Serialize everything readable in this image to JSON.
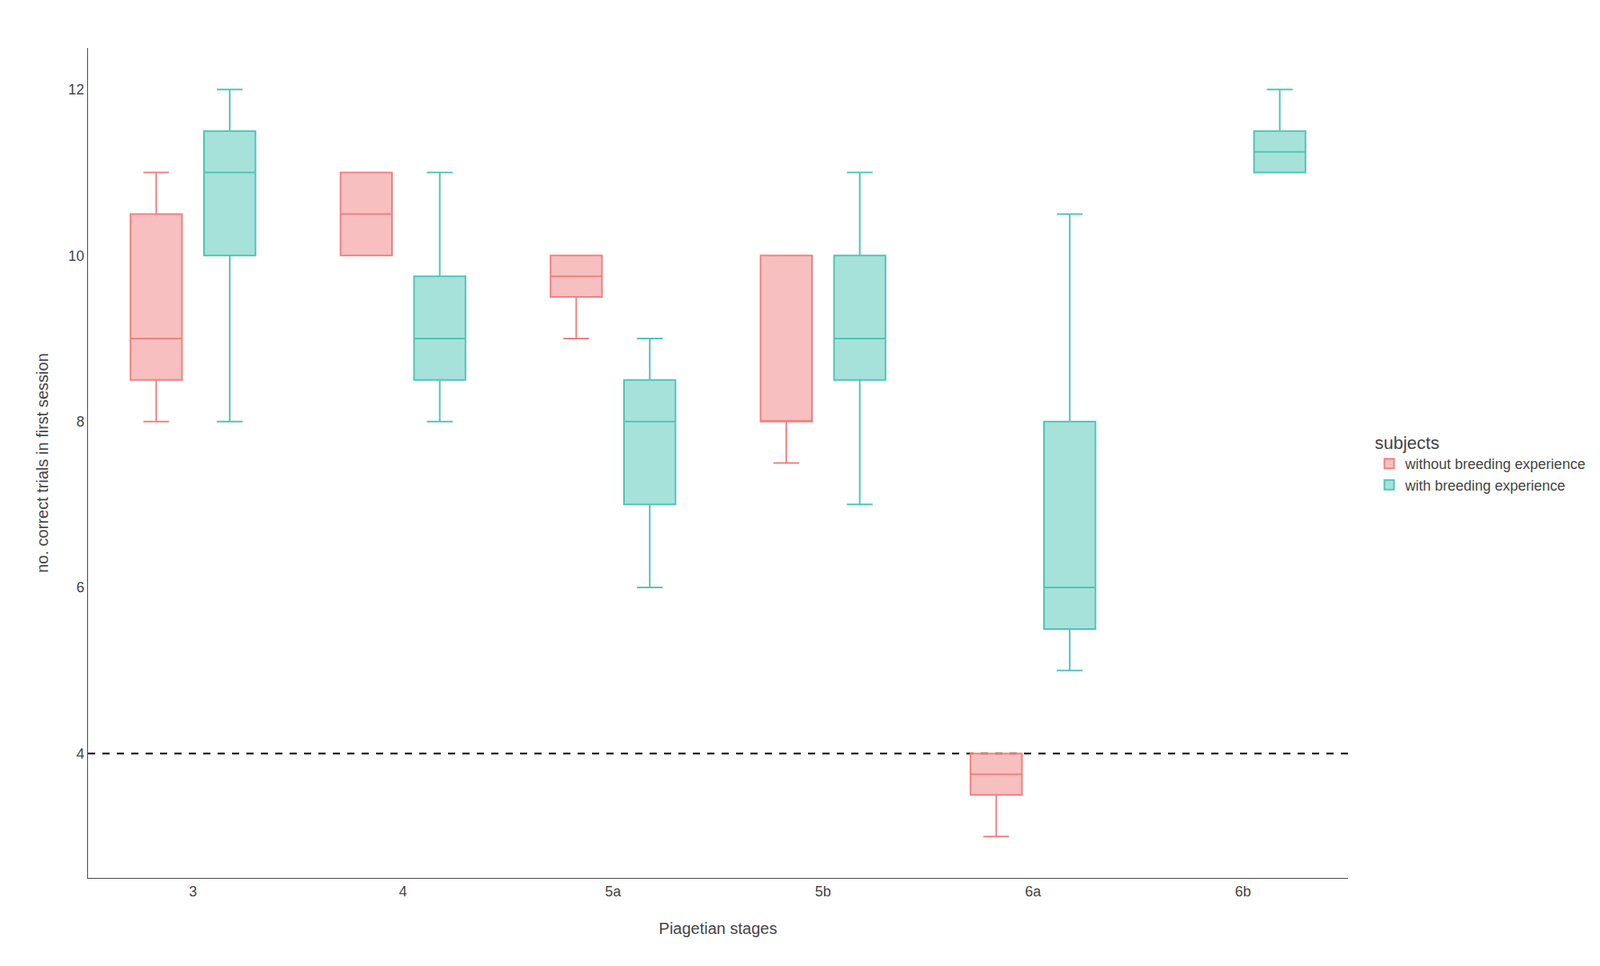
{
  "chart_data": {
    "type": "box",
    "x_label": "Piagetian stages",
    "y_label": "no. correct trials in first session",
    "categories": [
      "3",
      "4",
      "5a",
      "5b",
      "6a",
      "6b"
    ],
    "series": [
      {
        "name": "without breeding experience",
        "color": "#F08080",
        "whislo": [
          8.0,
          null,
          9.0,
          7.5,
          3.0,
          null
        ],
        "q1": [
          8.5,
          10.0,
          9.5,
          8.0,
          3.5,
          null
        ],
        "med": [
          9.0,
          10.5,
          9.75,
          8.0,
          3.75,
          null
        ],
        "q3": [
          10.5,
          11.0,
          10.0,
          10.0,
          4.0,
          null
        ],
        "whishi": [
          11.0,
          null,
          null,
          null,
          null,
          null
        ]
      },
      {
        "name": "with breeding experience",
        "color": "#4DC5B5",
        "whislo": [
          8.0,
          8.0,
          6.0,
          7.0,
          5.0,
          null
        ],
        "q1": [
          10.0,
          8.5,
          7.0,
          8.5,
          5.5,
          11.0
        ],
        "med": [
          11.0,
          9.0,
          8.0,
          9.0,
          6.0,
          11.25
        ],
        "q3": [
          11.5,
          9.75,
          8.5,
          10.0,
          8.0,
          11.5
        ],
        "whishi": [
          12.0,
          11.0,
          9.0,
          11.0,
          10.5,
          12.0
        ]
      }
    ],
    "reference_line": 4,
    "legend_title": "subjects",
    "legend": "right",
    "ylim": [
      2.5,
      12.5
    ],
    "yticks": [
      4,
      6,
      8,
      10,
      12
    ],
    "grid": false
  }
}
